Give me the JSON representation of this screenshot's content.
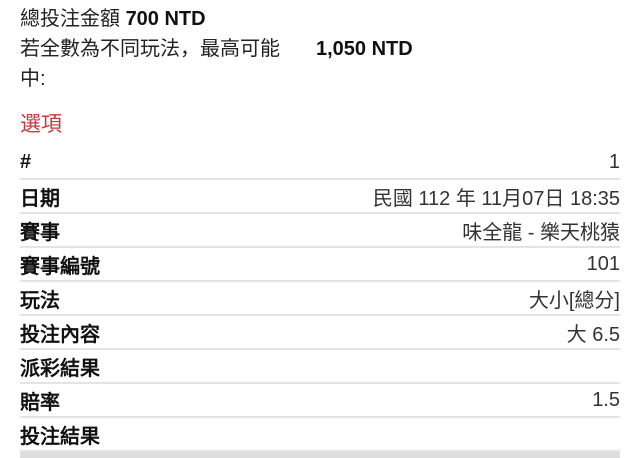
{
  "summary": {
    "total_label": "總投注金額",
    "total_value": "700 NTD",
    "max_label_1": "若全數為不同玩法，最高可能",
    "max_label_2": "中:",
    "max_value": "1,050 NTD"
  },
  "section_title": "選項",
  "rows": [
    {
      "label": "#",
      "value": "1"
    },
    {
      "label": "日期",
      "value": "民國 112 年 11月07日 18:35"
    },
    {
      "label": "賽事",
      "value": "味全龍 - 樂天桃猿"
    },
    {
      "label": "賽事編號",
      "value": "101"
    },
    {
      "label": "玩法",
      "value": "大小[總分]"
    },
    {
      "label": "投注內容",
      "value": "大 6.5"
    },
    {
      "label": "派彩結果",
      "value": ""
    },
    {
      "label": "賠率",
      "value": "1.5"
    },
    {
      "label": "投注結果",
      "value": ""
    }
  ]
}
